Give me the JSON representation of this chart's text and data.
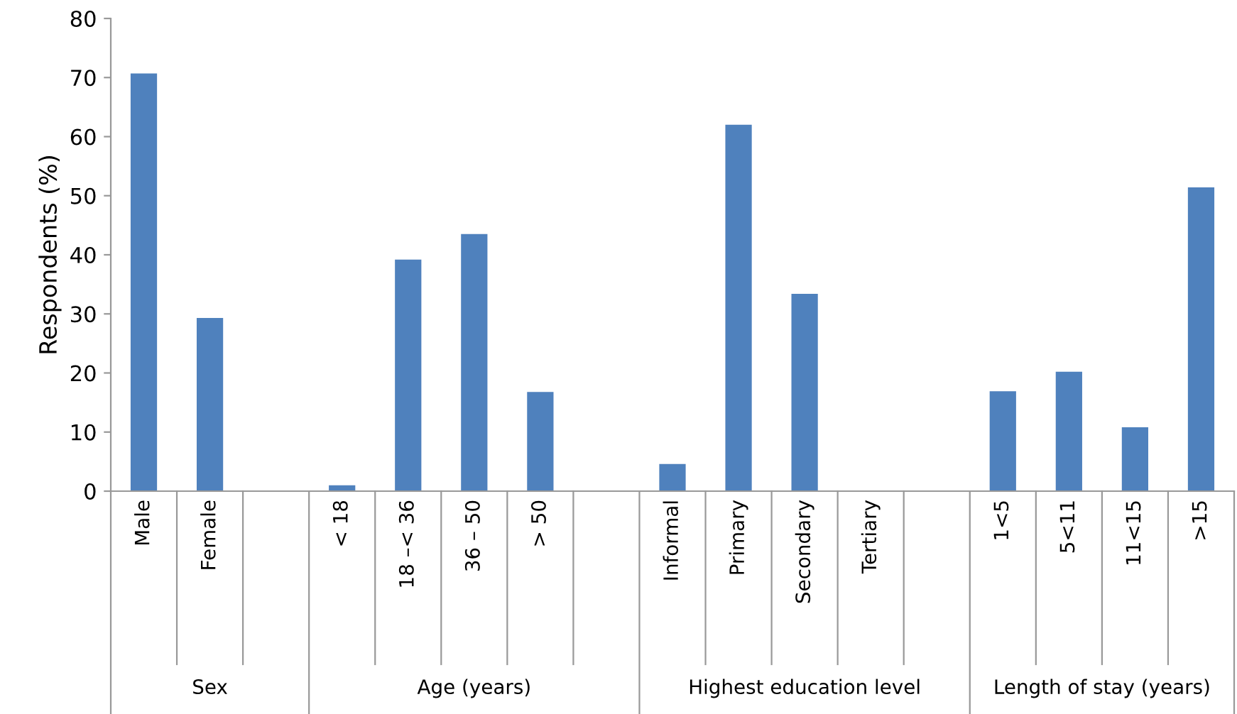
{
  "chart_data": {
    "type": "bar",
    "ylabel": "Respondents (%)",
    "categories": [
      "Male",
      "Female",
      null,
      "< 18",
      "18 –< 36",
      "36 – 50",
      "> 50",
      null,
      "Informal",
      "Primary",
      "Secondary",
      "Tertiary",
      null,
      "1<5",
      "5<11",
      "11<15",
      ">15"
    ],
    "values": [
      70.7,
      29.3,
      null,
      1,
      39.2,
      43.5,
      16.8,
      null,
      4.6,
      62,
      33.4,
      0,
      null,
      16.9,
      20.2,
      10.8,
      51.4
    ],
    "color": "#4f81bd",
    "ylim": [
      0,
      80
    ],
    "yticks": [
      0,
      10,
      20,
      30,
      40,
      50,
      60,
      70,
      80
    ],
    "grid": false,
    "annotations": [
      "Sex",
      "Age (years)",
      "Highest education level",
      "Length of stay (years)"
    ]
  }
}
